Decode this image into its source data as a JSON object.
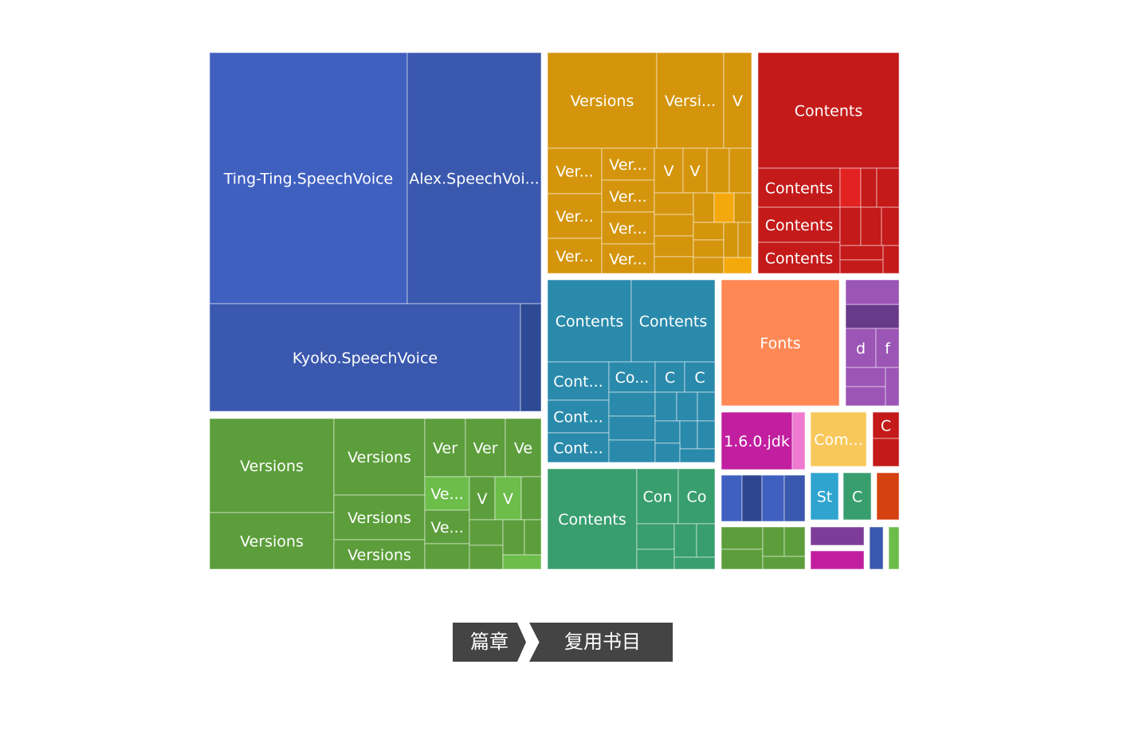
{
  "chart_data": {
    "type": "treemap",
    "note_units": "relative area (cell values estimated from screenshot area)",
    "groups": [
      {
        "color": "#4060c0",
        "items": [
          {
            "label": "Ting-Ting.SpeechVoice",
            "value": 790
          },
          {
            "label": "Alex.SpeechVoi...",
            "value": 530
          },
          {
            "label": "Kyoko.SpeechVoice",
            "value": 530
          },
          {
            "label": "",
            "value": 36
          }
        ]
      },
      {
        "color": "#d4950c",
        "items": [
          {
            "label": "Versions",
            "value": 164
          },
          {
            "label": "Versi...",
            "value": 96
          },
          {
            "label": "V",
            "value": 42
          },
          {
            "label": "Ver...",
            "value": 38
          },
          {
            "label": "Ver...",
            "value": 38
          },
          {
            "label": "Ver...",
            "value": 30
          },
          {
            "label": "Ver...",
            "value": 25
          },
          {
            "label": "Ver...",
            "value": 25
          },
          {
            "label": "Ver...",
            "value": 25
          },
          {
            "label": "Ver...",
            "value": 25
          },
          {
            "label": "V",
            "value": 17
          },
          {
            "label": "V",
            "value": 17
          }
        ]
      },
      {
        "color": "#c41a1a",
        "items": [
          {
            "label": "Contents",
            "value": 258
          },
          {
            "label": "Contents",
            "value": 54
          },
          {
            "label": "Contents",
            "value": 54
          },
          {
            "label": "Contents",
            "value": 40
          }
        ]
      },
      {
        "color": "#2a8aac",
        "items": [
          {
            "label": "Contents",
            "value": 110
          },
          {
            "label": "Contents",
            "value": 110
          },
          {
            "label": "Cont...",
            "value": 38
          },
          {
            "label": "Cont...",
            "value": 38
          },
          {
            "label": "Cont...",
            "value": 30
          },
          {
            "label": "Co...",
            "value": 25
          },
          {
            "label": "C",
            "value": 14
          },
          {
            "label": "C",
            "value": 14
          }
        ]
      },
      {
        "color": "#ff8855",
        "items": [
          {
            "label": "Fonts",
            "value": 238
          }
        ]
      },
      {
        "color": "#9b55b5",
        "items": [
          {
            "label": "d",
            "value": 22
          },
          {
            "label": "f",
            "value": 16
          }
        ]
      },
      {
        "color": "#389e6e",
        "items": [
          {
            "label": "Contents",
            "value": 142
          },
          {
            "label": "Con",
            "value": 35
          },
          {
            "label": "Co",
            "value": 35
          }
        ]
      },
      {
        "color": "#5c9e3b",
        "items": [
          {
            "label": "Versions",
            "value": 186
          },
          {
            "label": "Versions",
            "value": 112
          },
          {
            "label": "Versions",
            "value": 110
          },
          {
            "label": "Versions",
            "value": 61
          },
          {
            "label": "Versions",
            "value": 43
          },
          {
            "label": "Ver",
            "value": 39
          },
          {
            "label": "Ver",
            "value": 39
          },
          {
            "label": "Ve",
            "value": 29
          },
          {
            "label": "Ve...",
            "value": 29
          },
          {
            "label": "Ve...",
            "value": 29
          },
          {
            "label": "V",
            "value": 15
          },
          {
            "label": "V",
            "value": 15
          }
        ]
      },
      {
        "color": "#c11fa0",
        "items": [
          {
            "label": "1.6.0.jdk",
            "value": 62
          }
        ]
      },
      {
        "color": "#f9c85a",
        "items": [
          {
            "label": "Com...",
            "value": 48
          }
        ]
      },
      {
        "color": "#c41a1a",
        "items": [
          {
            "label": "C",
            "value": 16
          }
        ]
      },
      {
        "color": "#2fa4cf",
        "items": [
          {
            "label": "St",
            "value": 10
          }
        ]
      },
      {
        "color": "#389e6e",
        "items": [
          {
            "label": "C",
            "value": 10
          }
        ]
      }
    ]
  },
  "breadcrumb": {
    "items": [
      "篇章",
      "复用书目"
    ]
  }
}
